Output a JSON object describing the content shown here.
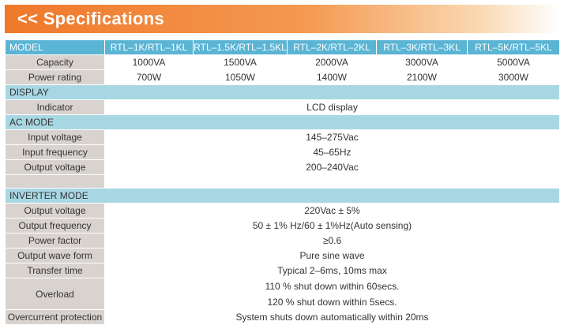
{
  "banner": {
    "title": "<< Specifications"
  },
  "header": {
    "model_label": "MODEL",
    "models": [
      "RTL–1K/RTL–1KL",
      "RTL–1.5K/RTL–1.5KL",
      "RTL–2K/RTL–2KL",
      "RTL–3K/RTL–3KL",
      "RTL–5K/RTL–5KL"
    ]
  },
  "capacity": {
    "label": "Capacity",
    "values": [
      "1000VA",
      "1500VA",
      "2000VA",
      "3000VA",
      "5000VA"
    ]
  },
  "power_rating": {
    "label": "Power rating",
    "values": [
      "700W",
      "1050W",
      "1400W",
      "2100W",
      "3000W"
    ]
  },
  "display": {
    "section": "DISPLAY",
    "indicator_label": "Indicator",
    "indicator_value": "LCD display"
  },
  "ac_mode": {
    "section": "AC MODE",
    "input_voltage_label": "Input voltage",
    "input_voltage_value": "145–275Vac",
    "input_frequency_label": "Input frequency",
    "input_frequency_value": "45–65Hz",
    "output_voltage_label": "Output voltage",
    "output_voltage_value": "200–240Vac"
  },
  "inverter_mode": {
    "section": "INVERTER MODE",
    "output_voltage_label": "Output voltage",
    "output_voltage_value": "220Vac ± 5%",
    "output_frequency_label": "Output frequency",
    "output_frequency_value": "50 ± 1% Hz/60 ± 1%Hz(Auto sensing)",
    "power_factor_label": "Power factor",
    "power_factor_value": "≥0.6",
    "output_wave_label": "Output wave form",
    "output_wave_value": "Pure sine wave",
    "transfer_time_label": "Transfer time",
    "transfer_time_value": "Typical 2–6ms, 10ms max",
    "overload_label": "Overload",
    "overload_value_1": "110 % shut down within 60secs.",
    "overload_value_2": "120 % shut down within 5secs.",
    "overcurrent_label": "Overcurrent protection",
    "overcurrent_value": "System shuts down automatically within 20ms"
  }
}
